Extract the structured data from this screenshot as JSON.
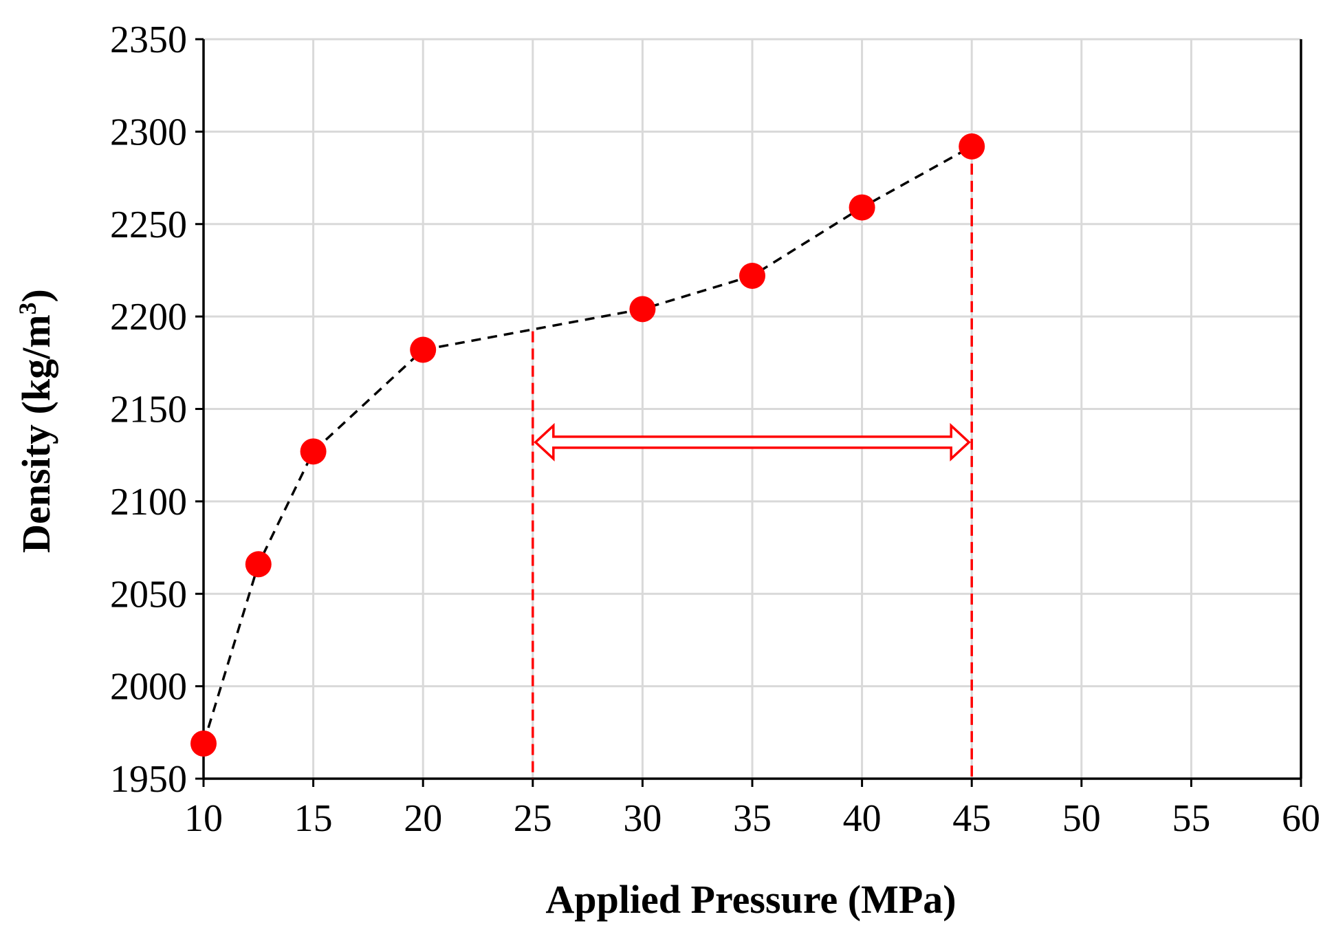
{
  "chart_data": {
    "type": "scatter",
    "title": "",
    "xlabel": "Applied Pressure (MPa)",
    "ylabel_main": "Density (kg/m",
    "ylabel_sup": "3",
    "ylabel_close": ")",
    "xlim": [
      10,
      60
    ],
    "ylim": [
      1950,
      2350
    ],
    "xticks": [
      10,
      15,
      20,
      25,
      30,
      35,
      40,
      45,
      50,
      55,
      60
    ],
    "yticks": [
      1950,
      2000,
      2050,
      2100,
      2150,
      2200,
      2250,
      2300,
      2350
    ],
    "grid": true,
    "series": [
      {
        "name": "Density",
        "marker_color": "#ff0000",
        "line_color": "#000000",
        "line_style": "dashed",
        "x": [
          10,
          12.5,
          15,
          20,
          30,
          35,
          40,
          45
        ],
        "y": [
          1969,
          2066,
          2127,
          2182,
          2204,
          2222,
          2259,
          2292
        ]
      }
    ],
    "annotations": {
      "range_start": 25,
      "range_start_y": 2192,
      "range_end": 45,
      "range_end_y": 2292,
      "arrow_y": 2132,
      "annotation_color": "#ff0000"
    }
  }
}
